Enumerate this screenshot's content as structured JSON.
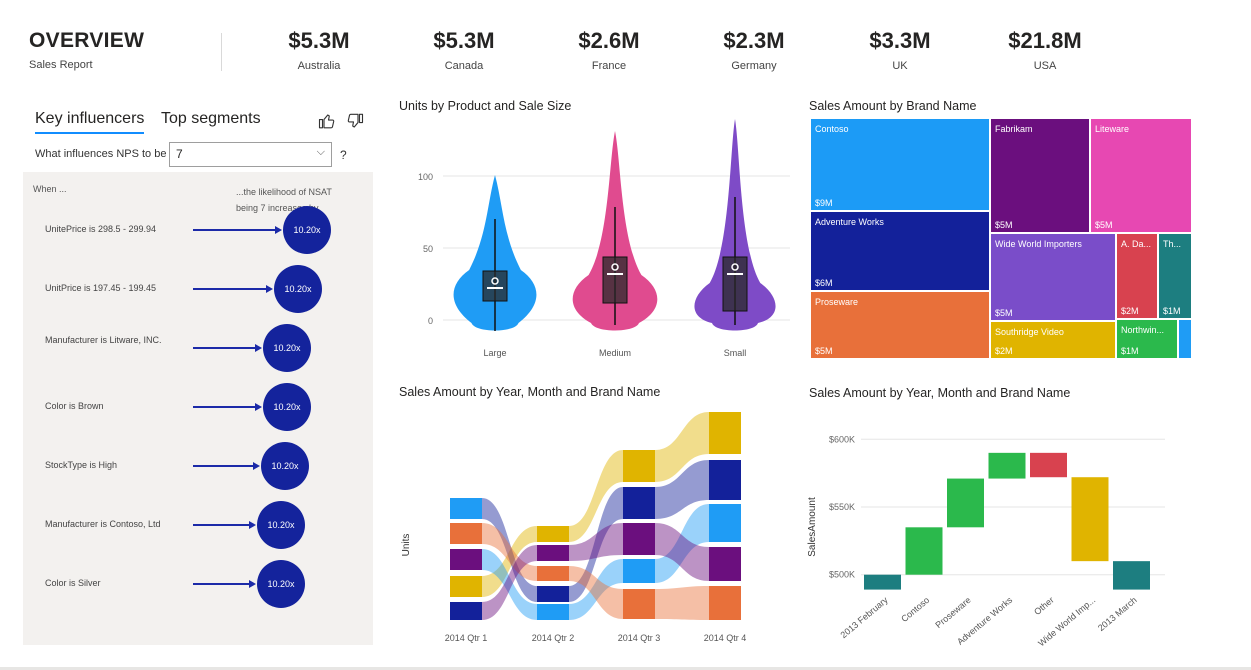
{
  "header": {
    "title": "OVERVIEW",
    "subtitle": "Sales Report",
    "kpis": [
      {
        "value": "$5.3M",
        "label": "Australia"
      },
      {
        "value": "$5.3M",
        "label": "Canada"
      },
      {
        "value": "$2.6M",
        "label": "France"
      },
      {
        "value": "$2.3M",
        "label": "Germany"
      },
      {
        "value": "$3.3M",
        "label": "UK"
      },
      {
        "value": "$21.8M",
        "label": "USA"
      }
    ]
  },
  "key_influencers": {
    "tabs": [
      "Key influencers",
      "Top segments"
    ],
    "question": "What influences NPS to be",
    "selected_value": "7",
    "help": "?",
    "when_label": "When ...",
    "likelihood_label": "...the likelihood of NSAT being 7 increases by",
    "icons": [
      "thumbs-up-icon",
      "thumbs-down-icon",
      "chevron-down-icon"
    ],
    "accent": "#14239c",
    "rows": [
      {
        "label": "UnitePrice is 298.5 - 299.94",
        "value": "10.20x",
        "factor": 1.0
      },
      {
        "label": "UnitPrice is 197.45 - 199.45",
        "value": "10.20x",
        "factor": 0.92
      },
      {
        "label": "Manufacturer is Litware, INC.",
        "value": "10.20x",
        "factor": 0.82
      },
      {
        "label": "Color is Brown",
        "value": "10.20x",
        "factor": 0.82
      },
      {
        "label": "StockType is High",
        "value": "10.20x",
        "factor": 0.8
      },
      {
        "label": "Manufacturer is Contoso, Ltd",
        "value": "10.20x",
        "factor": 0.76
      },
      {
        "label": "Color is Silver",
        "value": "10.20x",
        "factor": 0.76
      }
    ]
  },
  "violin": {
    "title": "Units by Product and Sale Size",
    "y_ticks": [
      "100",
      "50",
      "0"
    ],
    "categories": [
      "Large",
      "Medium",
      "Small"
    ],
    "colors": [
      "#1f9cf5",
      "#e04b8f",
      "#7e4bc7"
    ]
  },
  "treemap": {
    "title": "Sales Amount by Brand Name",
    "items": [
      {
        "name": "Contoso",
        "value": "$9M",
        "color": "#1c9bf6"
      },
      {
        "name": "Fabrikam",
        "value": "$5M",
        "color": "#6b0f7e"
      },
      {
        "name": "Liteware",
        "value": "$5M",
        "color": "#e748b2"
      },
      {
        "name": "Adventure Works",
        "value": "$6M",
        "color": "#13219a"
      },
      {
        "name": "Wide World Importers",
        "value": "$5M",
        "color": "#7a4dc9"
      },
      {
        "name": "A. Da...",
        "value": "$2M",
        "color": "#d8424f"
      },
      {
        "name": "Th...",
        "value": "$1M",
        "color": "#1d7e80"
      },
      {
        "name": "Proseware",
        "value": "$5M",
        "color": "#e8703a"
      },
      {
        "name": "Southridge Video",
        "value": "$2M",
        "color": "#e0b400"
      },
      {
        "name": "Northwin...",
        "value": "$1M",
        "color": "#2bb94c"
      },
      {
        "name": "",
        "value": "",
        "color": "#1f9cf5"
      }
    ]
  },
  "ribbon": {
    "title": "Sales Amount by Year, Month and Brand Name",
    "ylabel": "Units",
    "x_labels": [
      "2014 Qtr 1",
      "2014 Qtr 2",
      "2014 Qtr 3",
      "2014 Qtr 4"
    ]
  },
  "chart_data": {
    "type": "waterfall",
    "title": "Sales Amount by Year, Month and Brand Name",
    "ylabel": "SalesAmount",
    "y_ticks": [
      "$600K",
      "$550K",
      "$500K"
    ],
    "ylim": [
      485000,
      615000
    ],
    "categories": [
      "2013 February",
      "Contoso",
      "Proseware",
      "Adventure Works",
      "Other",
      "Wide World Imp...",
      "2013 March"
    ],
    "bars": [
      {
        "start": 489000,
        "end": 500000,
        "color": "#1d7e80"
      },
      {
        "start": 500000,
        "end": 535000,
        "color": "#2bb94c"
      },
      {
        "start": 535000,
        "end": 571000,
        "color": "#2bb94c"
      },
      {
        "start": 571000,
        "end": 590000,
        "color": "#2bb94c"
      },
      {
        "start": 590000,
        "end": 572000,
        "color": "#d8424f"
      },
      {
        "start": 572000,
        "end": 510000,
        "color": "#e0b400"
      },
      {
        "start": 489000,
        "end": 510000,
        "color": "#1d7e80"
      }
    ]
  }
}
